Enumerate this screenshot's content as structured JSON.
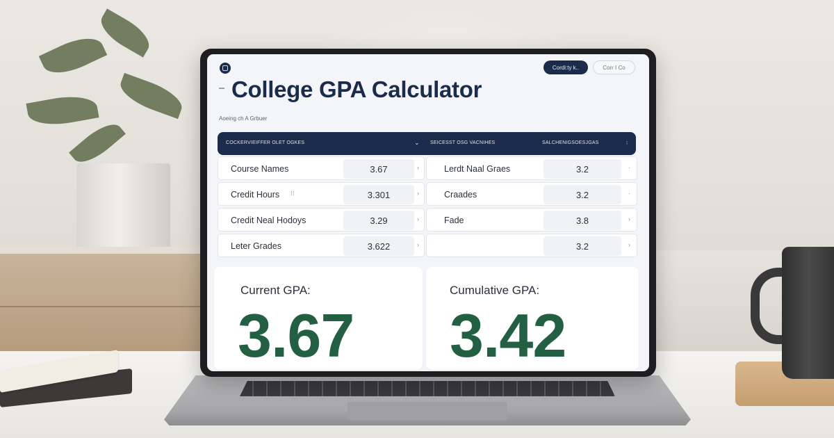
{
  "app": {
    "title": "College GPA Calculator",
    "subtitle": "Aoeing ch A Grbuer",
    "primary_button": "Cordi:ty k..",
    "secondary_button": "Corr I Co"
  },
  "table_header": {
    "col1": "COCKERVIEIFFER OLET OGKES",
    "col2": "SEICESST OSG VACNIHES",
    "col3": "SALCHENIGSOESJGAS"
  },
  "left_rows": [
    {
      "label": "Course Names",
      "value": "3.67"
    },
    {
      "label": "Credit Hours",
      "value": "3.301"
    },
    {
      "label": "Credit Neal Hodoys",
      "value": "3.29"
    },
    {
      "label": "Leter Grades",
      "value": "3.622"
    }
  ],
  "right_rows": [
    {
      "label": "Lerdt Naal Graes",
      "value": "3.2"
    },
    {
      "label": "Craades",
      "value": "3.2"
    },
    {
      "label": "Fade",
      "value": "3.8"
    },
    {
      "label": "",
      "value": "3.2"
    }
  ],
  "current_gpa": {
    "label": "Current GPA:",
    "value": "3.67"
  },
  "cumulative_gpa": {
    "label": "Cumulative GPA:",
    "value": "3.42"
  },
  "colors": {
    "navy": "#1b2b4b",
    "gpa_green": "#235f43",
    "screen_bg": "#f4f5f8"
  },
  "icons": [
    "app-logo-icon",
    "menu-icon",
    "chevron-down-icon",
    "more-icon",
    "chevron-right-icon"
  ]
}
